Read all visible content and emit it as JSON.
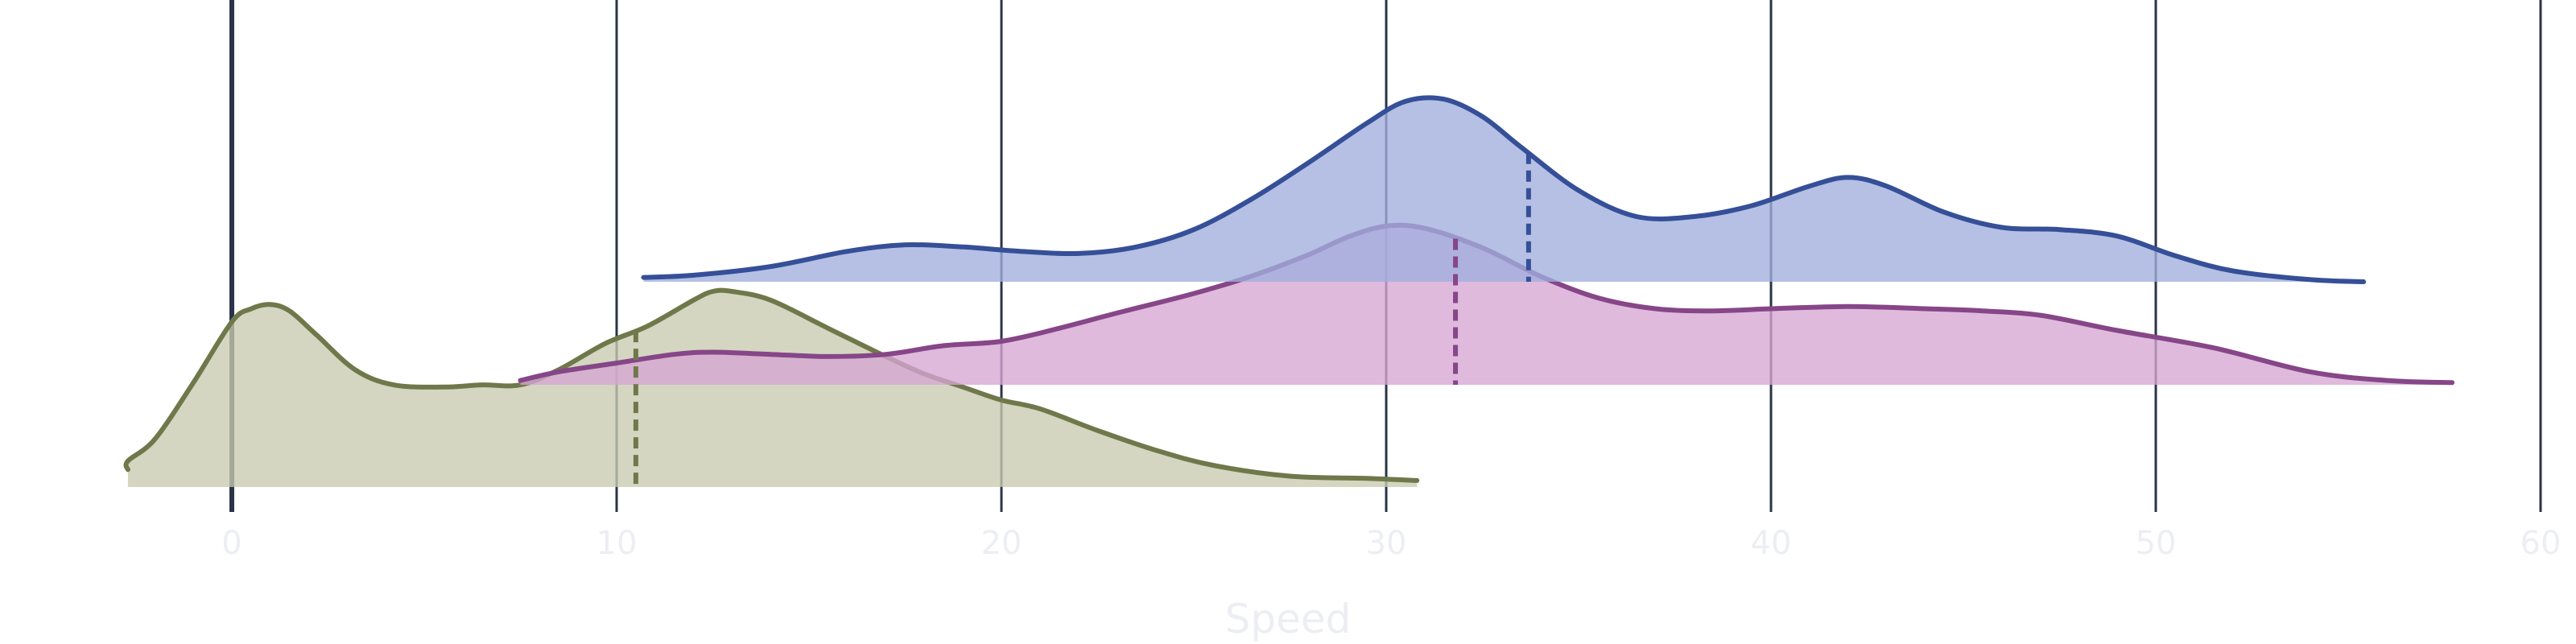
{
  "chart_data": {
    "type": "area",
    "title": "",
    "xlabel": "Speed",
    "ylabel": "",
    "xlim": [
      -2.7,
      60
    ],
    "grid": {
      "vertical": true,
      "horizontal": false
    },
    "legend": "none",
    "xticks": [
      {
        "value": 0,
        "label": "0"
      },
      {
        "value": 10,
        "label": "10"
      },
      {
        "value": 20,
        "label": "20"
      },
      {
        "value": 30,
        "label": "30"
      },
      {
        "value": 40,
        "label": "40"
      },
      {
        "value": 50,
        "label": "50"
      },
      {
        "value": 60,
        "label": "60"
      }
    ],
    "series": [
      {
        "row": 0,
        "fill": "#c8cbb0",
        "stroke": "#6f784a",
        "marker": 10.5,
        "points": [
          [
            -2.7,
            0.08
          ],
          [
            -2.7,
            0.12
          ],
          [
            -2.0,
            0.22
          ],
          [
            -1.0,
            0.48
          ],
          [
            0.0,
            0.76
          ],
          [
            0.5,
            0.82
          ],
          [
            1.0,
            0.84
          ],
          [
            1.5,
            0.81
          ],
          [
            2.2,
            0.7
          ],
          [
            3.2,
            0.54
          ],
          [
            4.2,
            0.47
          ],
          [
            5.5,
            0.46
          ],
          [
            6.5,
            0.47
          ],
          [
            7.5,
            0.47
          ],
          [
            8.5,
            0.54
          ],
          [
            9.7,
            0.66
          ],
          [
            10.8,
            0.74
          ],
          [
            12.0,
            0.86
          ],
          [
            12.5,
            0.9
          ],
          [
            13.0,
            0.9
          ],
          [
            14.0,
            0.86
          ],
          [
            15.5,
            0.73
          ],
          [
            17.0,
            0.6
          ],
          [
            18.0,
            0.52
          ],
          [
            19.0,
            0.46
          ],
          [
            20.0,
            0.4
          ],
          [
            21.0,
            0.36
          ],
          [
            22.5,
            0.26
          ],
          [
            24.0,
            0.17
          ],
          [
            25.5,
            0.1
          ],
          [
            27.5,
            0.05
          ],
          [
            29.5,
            0.04
          ],
          [
            30.8,
            0.03
          ]
        ]
      },
      {
        "row": 1,
        "fill": "#d6a7d4",
        "stroke": "#864688",
        "marker": 31.8,
        "points": [
          [
            7.5,
            0.02
          ],
          [
            8.5,
            0.06
          ],
          [
            10.0,
            0.1
          ],
          [
            11.5,
            0.14
          ],
          [
            12.5,
            0.15
          ],
          [
            14.0,
            0.14
          ],
          [
            15.5,
            0.13
          ],
          [
            17.0,
            0.14
          ],
          [
            18.5,
            0.18
          ],
          [
            20.0,
            0.2
          ],
          [
            21.5,
            0.26
          ],
          [
            23.0,
            0.33
          ],
          [
            25.0,
            0.42
          ],
          [
            26.5,
            0.5
          ],
          [
            28.0,
            0.6
          ],
          [
            29.0,
            0.68
          ],
          [
            30.0,
            0.73
          ],
          [
            31.0,
            0.72
          ],
          [
            32.5,
            0.63
          ],
          [
            34.0,
            0.5
          ],
          [
            35.5,
            0.4
          ],
          [
            37.0,
            0.35
          ],
          [
            38.5,
            0.34
          ],
          [
            40.0,
            0.35
          ],
          [
            42.0,
            0.36
          ],
          [
            44.0,
            0.35
          ],
          [
            45.5,
            0.34
          ],
          [
            47.0,
            0.32
          ],
          [
            49.0,
            0.25
          ],
          [
            51.5,
            0.17
          ],
          [
            54.0,
            0.06
          ],
          [
            56.0,
            0.02
          ],
          [
            57.7,
            0.01
          ]
        ]
      },
      {
        "row": 2,
        "fill": "#a0aedd",
        "stroke": "#354f98",
        "marker": 33.7,
        "points": [
          [
            10.7,
            0.02
          ],
          [
            12.0,
            0.03
          ],
          [
            14.0,
            0.07
          ],
          [
            16.0,
            0.14
          ],
          [
            17.5,
            0.17
          ],
          [
            19.0,
            0.16
          ],
          [
            20.5,
            0.14
          ],
          [
            22.0,
            0.13
          ],
          [
            23.5,
            0.16
          ],
          [
            25.0,
            0.24
          ],
          [
            26.5,
            0.38
          ],
          [
            28.0,
            0.55
          ],
          [
            29.5,
            0.73
          ],
          [
            30.5,
            0.83
          ],
          [
            31.5,
            0.84
          ],
          [
            32.5,
            0.76
          ],
          [
            33.5,
            0.62
          ],
          [
            35.0,
            0.42
          ],
          [
            36.5,
            0.3
          ],
          [
            38.0,
            0.3
          ],
          [
            39.5,
            0.35
          ],
          [
            41.0,
            0.44
          ],
          [
            42.0,
            0.48
          ],
          [
            43.0,
            0.44
          ],
          [
            44.5,
            0.32
          ],
          [
            46.0,
            0.25
          ],
          [
            47.5,
            0.24
          ],
          [
            49.0,
            0.21
          ],
          [
            50.5,
            0.12
          ],
          [
            52.0,
            0.05
          ],
          [
            54.0,
            0.01
          ],
          [
            55.4,
            0.0
          ]
        ]
      }
    ]
  }
}
